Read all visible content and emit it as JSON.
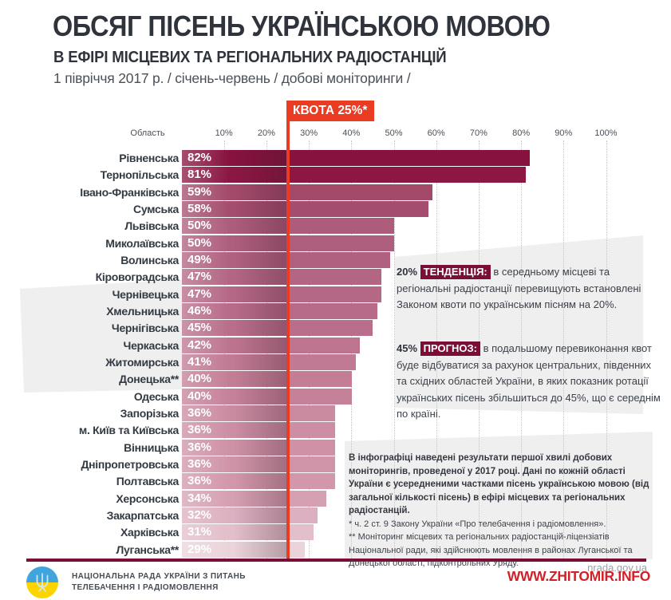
{
  "header": {
    "title": "ОБСЯГ ПІСЕНЬ УКРАЇНСЬКОЮ МОВОЮ",
    "subtitle": "В ЕФІРІ МІСЦЕВИХ ТА РЕГІОНАЛЬНИХ РАДІОСТАНЦІЙ",
    "period": "1 півріччя 2017 р.  / січень-червень / добові моніторинги /"
  },
  "quota_badge": "КВОТА 25%*",
  "axis": {
    "col_header": "Область",
    "ticks": [
      "10%",
      "20%",
      "30%",
      "40%",
      "50%",
      "60%",
      "70%",
      "80%",
      "90%",
      "100%"
    ]
  },
  "chart_data": {
    "type": "bar",
    "orientation": "horizontal",
    "title": "Обсяг пісень українською мовою в ефірі місцевих та регіональних радіостанцій",
    "unit": "%",
    "xlim": [
      0,
      105
    ],
    "quota_percent": 25,
    "grid": "dotted-vertical",
    "categories": [
      "Рівненська",
      "Тернопільська",
      "Івано-Франківська",
      "Сумська",
      "Львівська",
      "Миколаївська",
      "Волинська",
      "Кіровоградська",
      "Чернівецька",
      "Хмельницька",
      "Чернігівська",
      "Черкаська",
      "Житомирська",
      "Донецька**",
      "Одеська",
      "Запорізька",
      "м. Київ та Київська",
      "Вінницька",
      "Дніпропетровська",
      "Полтавська",
      "Херсонська",
      "Закарпатська",
      "Харківська",
      "Луганська**"
    ],
    "values": [
      82,
      81,
      59,
      58,
      50,
      50,
      49,
      47,
      47,
      46,
      45,
      42,
      41,
      40,
      40,
      36,
      36,
      36,
      36,
      36,
      34,
      32,
      31,
      29
    ],
    "bar_colors": [
      "#87123f",
      "#8c1644",
      "#a34a6b",
      "#a54d6e",
      "#ad5c7c",
      "#ae5e7e",
      "#b06180",
      "#b36684",
      "#b56886",
      "#b76b89",
      "#b96e8b",
      "#bd758f",
      "#c07a93",
      "#c37e96",
      "#c5819a",
      "#ca8ba1",
      "#cc8ea4",
      "#ce91a6",
      "#d094a8",
      "#d297ab",
      "#d5a0b2",
      "#dcb0c0",
      "#e2bfca",
      "#ead4da"
    ]
  },
  "annotations": {
    "trend": {
      "prefix": "20%",
      "tag": "ТЕНДЕНЦІЯ:",
      "text": "в середньому місцеві та регіональні радіостанції перевищують встановлені Законом квоти по українським пісням на 20%."
    },
    "forecast": {
      "prefix": "45%",
      "tag": "ПРОГНОЗ:",
      "text": "в подальшому перевиконання квот буде відбуватися за рахунок центральних, південних та східних областей України, в яких показник ротації українських пісень збільшиться до 45%, що є середнім по країні."
    },
    "note": "В інфографіці наведені результати першої хвилі добових моніторингів, проведеної у 2017 році. Дані по кожній області України є усередненими частками пісень українською мовою (від загальної кількості пісень) в ефірі місцевих та регіональних радіостанцій.",
    "footnote1": "* ч. 2 ст. 9 Закону України «Про телебачення і радіомовлення».",
    "footnote2": "** Моніторинг місцевих та регіональних радіостанцій-ліцензіатів Національної ради, які здійснюють мовлення в районах Луганської та Донецької області, підконтрольних Уряду."
  },
  "footer": {
    "org_line1": "НАЦІОНАЛЬНА РАДА УКРАЇНИ З ПИТАНЬ",
    "org_line2": "ТЕЛЕБАЧЕННЯ І РАДІОМОВЛЕННЯ",
    "site": "nrada.gov.ua",
    "watermark": "WWW.ZHITOMIR.INFO"
  },
  "colors": {
    "accent_red": "#ea3b23",
    "maroon": "#7a0e37",
    "wedge_gray": "#f0eff0",
    "grid_gray": "#c6c6c8",
    "title_dark": "#2f343c",
    "body_text": "#3c424a",
    "site_gray": "#9aa1a8",
    "watermark_red": "#d41f26",
    "logo_blue": "#3fa5dc",
    "logo_yellow": "#fcd400"
  }
}
